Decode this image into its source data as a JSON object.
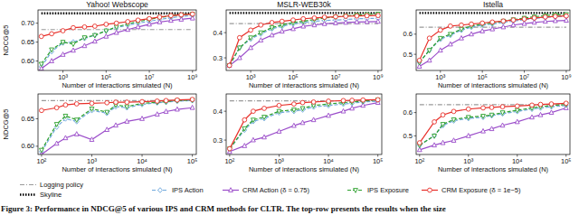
{
  "caption": "Figure 3: Performance in NDCG@5 of various IPS and CRM methods for CLTR. The top-row presents the results when the size",
  "chart_data": [
    {
      "type": "line",
      "title": "Yahoo! Webscope",
      "x_label": "Number of interactions simulated (N)",
      "y_label": "NDCG@5",
      "log": "x",
      "legend": "bottom",
      "x": [
        100,
        300,
        1000,
        3000,
        10000,
        30000,
        100000,
        300000,
        1000000,
        3000000,
        10000000,
        30000000,
        100000000,
        300000000,
        1000000000
      ],
      "xlim": [
        70,
        1500000000
      ],
      "xticks": [
        {
          "value": 1000,
          "label": "10³"
        },
        {
          "value": 100000,
          "label": "10⁵"
        },
        {
          "value": 10000000,
          "label": "10⁷"
        },
        {
          "value": 1000000000,
          "label": "10⁹"
        }
      ],
      "ylim": [
        0.575,
        0.735
      ],
      "yticks": [
        {
          "value": 0.6,
          "label": "0.60"
        },
        {
          "value": 0.65,
          "label": "0.65"
        },
        {
          "value": 0.7,
          "label": "0.70"
        }
      ],
      "series": [
        {
          "name": "Logging policy",
          "color": "#999999",
          "line_style": "dashdot",
          "values": [
            0.683,
            0.683,
            0.683,
            0.683,
            0.683,
            0.683,
            0.683,
            0.683,
            0.683,
            0.683,
            0.683,
            0.683,
            0.683,
            0.683,
            0.683
          ]
        },
        {
          "name": "Skyline",
          "color": "#000000",
          "line_style": "dotted",
          "values": [
            0.726,
            0.726,
            0.726,
            0.726,
            0.726,
            0.726,
            0.726,
            0.726,
            0.726,
            0.726,
            0.726,
            0.726,
            0.726,
            0.726,
            0.726
          ]
        },
        {
          "name": "IPS Action",
          "color": "#6fa8dc",
          "line_style": "dashed",
          "marker": "diamond",
          "values": [
            0.585,
            0.625,
            0.648,
            0.65,
            0.66,
            0.668,
            0.68,
            0.688,
            0.695,
            0.7,
            0.705,
            0.71,
            0.714,
            0.718,
            0.72
          ]
        },
        {
          "name": "CRM Action (δ = 0.75)",
          "color": "#9b4dca",
          "line_style": "solid",
          "marker": "triangle-up",
          "values": [
            0.58,
            0.6,
            0.617,
            0.628,
            0.64,
            0.652,
            0.665,
            0.675,
            0.683,
            0.69,
            0.697,
            0.703,
            0.707,
            0.71,
            0.713
          ]
        },
        {
          "name": "IPS Exposure",
          "color": "#2ca02c",
          "line_style": "dashed",
          "marker": "triangle-down",
          "values": [
            0.592,
            0.63,
            0.65,
            0.645,
            0.662,
            0.668,
            0.68,
            0.69,
            0.698,
            0.704,
            0.71,
            0.715,
            0.719,
            0.722,
            0.724
          ]
        },
        {
          "name": "CRM Exposure (δ = 1e−5)",
          "color": "#e8302a",
          "line_style": "solid",
          "marker": "circle",
          "values": [
            0.665,
            0.672,
            0.68,
            0.688,
            0.69,
            0.692,
            0.697,
            0.7,
            0.704,
            0.708,
            0.712,
            0.716,
            0.72,
            0.722,
            0.724
          ]
        }
      ]
    },
    {
      "type": "line",
      "title": "MSLR-WEB30k",
      "x_label": "Number of interactions simulated (N)",
      "log": "x",
      "x": [
        100,
        300,
        1000,
        3000,
        10000,
        30000,
        100000,
        300000,
        1000000,
        3000000,
        10000000,
        30000000,
        100000000,
        300000000,
        1000000000
      ],
      "xlim": [
        70,
        1500000000
      ],
      "xticks": [
        {
          "value": 1000,
          "label": "10³"
        },
        {
          "value": 100000,
          "label": "10⁵"
        },
        {
          "value": 10000000,
          "label": "10⁷"
        },
        {
          "value": 1000000000,
          "label": "10⁹"
        }
      ],
      "ylim": [
        0.25,
        0.49
      ],
      "yticks": [
        0.3,
        0.4
      ],
      "series": [
        {
          "color": "#999999",
          "line_style": "dashdot",
          "values": [
            0.436,
            0.436,
            0.436,
            0.436,
            0.436,
            0.436,
            0.436,
            0.436,
            0.436,
            0.436,
            0.436,
            0.436,
            0.436,
            0.436,
            0.436
          ]
        },
        {
          "color": "#000000",
          "line_style": "dotted",
          "values": [
            0.478,
            0.478,
            0.478,
            0.478,
            0.478,
            0.478,
            0.478,
            0.478,
            0.478,
            0.478,
            0.478,
            0.478,
            0.478,
            0.478,
            0.478
          ]
        },
        {
          "color": "#6fa8dc",
          "line_style": "dashed",
          "marker": "diamond",
          "values": [
            0.27,
            0.34,
            0.375,
            0.395,
            0.415,
            0.425,
            0.435,
            0.44,
            0.445,
            0.448,
            0.45,
            0.452,
            0.455,
            0.456,
            0.457
          ]
        },
        {
          "color": "#9b4dca",
          "line_style": "solid",
          "marker": "triangle-up",
          "values": [
            0.27,
            0.3,
            0.34,
            0.37,
            0.39,
            0.405,
            0.415,
            0.425,
            0.43,
            0.435,
            0.438,
            0.44,
            0.442,
            0.443,
            0.444
          ]
        },
        {
          "color": "#2ca02c",
          "line_style": "dashed",
          "marker": "triangle-down",
          "values": [
            0.27,
            0.34,
            0.38,
            0.4,
            0.42,
            0.43,
            0.44,
            0.445,
            0.452,
            0.458,
            0.462,
            0.466,
            0.47,
            0.472,
            0.474
          ]
        },
        {
          "color": "#e8302a",
          "line_style": "solid",
          "marker": "circle",
          "values": [
            0.27,
            0.38,
            0.41,
            0.43,
            0.44,
            0.445,
            0.45,
            0.455,
            0.458,
            0.461,
            0.463,
            0.465,
            0.466,
            0.467,
            0.468
          ]
        }
      ]
    },
    {
      "type": "line",
      "title": "Istella",
      "x_label": "Number of interactions simulated (N)",
      "log": "x",
      "x": [
        100,
        300,
        1000,
        3000,
        10000,
        30000,
        100000,
        300000,
        1000000,
        3000000,
        10000000,
        30000000,
        100000000,
        300000000,
        1000000000
      ],
      "xlim": [
        70,
        1500000000
      ],
      "xticks": [
        {
          "value": 1000,
          "label": "10³"
        },
        {
          "value": 100000,
          "label": "10⁵"
        },
        {
          "value": 10000000,
          "label": "10⁷"
        },
        {
          "value": 1000000000,
          "label": "10⁹"
        }
      ],
      "ylim": [
        0.42,
        0.72
      ],
      "yticks": [
        0.5,
        0.6
      ],
      "series": [
        {
          "color": "#999999",
          "line_style": "dashdot",
          "values": [
            0.634,
            0.634,
            0.634,
            0.634,
            0.634,
            0.634,
            0.634,
            0.634,
            0.634,
            0.634,
            0.634,
            0.634,
            0.634,
            0.634,
            0.634
          ]
        },
        {
          "color": "#000000",
          "line_style": "dotted",
          "values": [
            0.705,
            0.705,
            0.705,
            0.705,
            0.705,
            0.705,
            0.705,
            0.705,
            0.705,
            0.705,
            0.705,
            0.705,
            0.705,
            0.705,
            0.705
          ]
        },
        {
          "color": "#6fa8dc",
          "line_style": "dashed",
          "marker": "diamond",
          "values": [
            0.46,
            0.52,
            0.575,
            0.595,
            0.62,
            0.635,
            0.645,
            0.65,
            0.658,
            0.665,
            0.672,
            0.678,
            0.683,
            0.686,
            0.688
          ]
        },
        {
          "color": "#9b4dca",
          "line_style": "solid",
          "marker": "triangle-up",
          "values": [
            0.44,
            0.47,
            0.52,
            0.55,
            0.58,
            0.6,
            0.615,
            0.625,
            0.635,
            0.645,
            0.652,
            0.658,
            0.663,
            0.666,
            0.668
          ]
        },
        {
          "color": "#2ca02c",
          "line_style": "dashed",
          "marker": "triangle-down",
          "values": [
            0.46,
            0.52,
            0.58,
            0.6,
            0.625,
            0.64,
            0.65,
            0.655,
            0.665,
            0.672,
            0.68,
            0.686,
            0.692,
            0.696,
            0.698
          ]
        },
        {
          "color": "#e8302a",
          "line_style": "solid",
          "marker": "circle",
          "values": [
            0.47,
            0.58,
            0.62,
            0.64,
            0.645,
            0.65,
            0.655,
            0.66,
            0.665,
            0.67,
            0.675,
            0.68,
            0.685,
            0.688,
            0.69
          ]
        }
      ]
    },
    {
      "type": "line",
      "x_label": "Number of interactions simulated (N)",
      "y_label": "NDCG@5",
      "log": "x",
      "x": [
        100,
        200,
        300,
        500,
        1000,
        2000,
        3000,
        5000,
        10000,
        20000,
        30000,
        50000,
        100000
      ],
      "xlim": [
        85,
        120000
      ],
      "xticks": [
        {
          "value": 100,
          "label": "10²"
        },
        {
          "value": 1000,
          "label": "10³"
        },
        {
          "value": 10000,
          "label": "10⁴"
        },
        {
          "value": 100000,
          "label": "10⁵"
        }
      ],
      "ylim": [
        0.585,
        0.695
      ],
      "yticks": [
        {
          "value": 0.6,
          "label": "0.60"
        },
        {
          "value": 0.65,
          "label": "0.65"
        }
      ],
      "series": [
        {
          "color": "#999999",
          "line_style": "dashdot",
          "values": [
            0.683,
            0.683,
            0.683,
            0.683,
            0.683,
            0.683,
            0.683,
            0.683,
            0.683,
            0.683,
            0.683,
            0.683,
            0.683
          ]
        },
        {
          "color": "#6fa8dc",
          "line_style": "dashed",
          "marker": "diamond",
          "values": [
            0.59,
            0.635,
            0.65,
            0.645,
            0.665,
            0.66,
            0.672,
            0.67,
            0.676,
            0.679,
            0.68,
            0.682,
            0.683
          ]
        },
        {
          "color": "#9b4dca",
          "line_style": "solid",
          "marker": "triangle-up",
          "values": [
            0.585,
            0.605,
            0.615,
            0.622,
            0.612,
            0.63,
            0.638,
            0.645,
            0.65,
            0.658,
            0.663,
            0.667,
            0.67
          ]
        },
        {
          "color": "#2ca02c",
          "line_style": "dashed",
          "marker": "triangle-down",
          "values": [
            0.593,
            0.64,
            0.655,
            0.648,
            0.668,
            0.662,
            0.675,
            0.672,
            0.678,
            0.68,
            0.681,
            0.683,
            0.684
          ]
        },
        {
          "color": "#e8302a",
          "line_style": "solid",
          "marker": "circle",
          "values": [
            0.665,
            0.67,
            0.675,
            0.677,
            0.678,
            0.679,
            0.68,
            0.68,
            0.681,
            0.682,
            0.683,
            0.684,
            0.685
          ]
        }
      ]
    },
    {
      "type": "line",
      "x_label": "Number of interactions simulated (N)",
      "log": "x",
      "x": [
        100,
        200,
        300,
        500,
        1000,
        2000,
        3000,
        5000,
        10000,
        20000,
        30000,
        50000,
        100000
      ],
      "xlim": [
        85,
        120000
      ],
      "xticks": [
        {
          "value": 100,
          "label": "10²"
        },
        {
          "value": 1000,
          "label": "10³"
        },
        {
          "value": 10000,
          "label": "10⁴"
        },
        {
          "value": 100000,
          "label": "10⁵"
        }
      ],
      "ylim": [
        0.25,
        0.46
      ],
      "yticks": [
        0.3,
        0.4
      ],
      "series": [
        {
          "color": "#999999",
          "line_style": "dashdot",
          "values": [
            0.436,
            0.436,
            0.436,
            0.436,
            0.436,
            0.436,
            0.436,
            0.436,
            0.436,
            0.436,
            0.436,
            0.436,
            0.436
          ]
        },
        {
          "color": "#6fa8dc",
          "line_style": "dashed",
          "marker": "diamond",
          "values": [
            0.27,
            0.335,
            0.365,
            0.375,
            0.395,
            0.4,
            0.405,
            0.415,
            0.42,
            0.425,
            0.428,
            0.432,
            0.435
          ]
        },
        {
          "color": "#9b4dca",
          "line_style": "solid",
          "marker": "triangle-up",
          "values": [
            0.26,
            0.28,
            0.3,
            0.31,
            0.33,
            0.35,
            0.36,
            0.37,
            0.385,
            0.4,
            0.41,
            0.42,
            0.43
          ]
        },
        {
          "color": "#2ca02c",
          "line_style": "dashed",
          "marker": "triangle-down",
          "values": [
            0.27,
            0.34,
            0.37,
            0.38,
            0.4,
            0.405,
            0.41,
            0.42,
            0.425,
            0.43,
            0.432,
            0.435,
            0.44
          ]
        },
        {
          "color": "#e8302a",
          "line_style": "solid",
          "marker": "circle",
          "values": [
            0.27,
            0.37,
            0.4,
            0.41,
            0.42,
            0.425,
            0.43,
            0.432,
            0.435,
            0.437,
            0.438,
            0.439,
            0.44
          ]
        }
      ]
    },
    {
      "type": "line",
      "x_label": "Number of interactions simulated (N)",
      "log": "x",
      "x": [
        100,
        200,
        300,
        500,
        1000,
        2000,
        3000,
        5000,
        10000,
        20000,
        30000,
        50000,
        100000
      ],
      "xlim": [
        85,
        120000
      ],
      "xticks": [
        {
          "value": 100,
          "label": "10²"
        },
        {
          "value": 1000,
          "label": "10³"
        },
        {
          "value": 10000,
          "label": "10⁴"
        },
        {
          "value": 100000,
          "label": "10⁵"
        }
      ],
      "ylim": [
        0.42,
        0.68
      ],
      "yticks": [
        0.5,
        0.6
      ],
      "series": [
        {
          "color": "#999999",
          "line_style": "dashdot",
          "values": [
            0.634,
            0.634,
            0.634,
            0.634,
            0.634,
            0.634,
            0.634,
            0.634,
            0.634,
            0.634,
            0.634,
            0.634,
            0.634
          ]
        },
        {
          "color": "#6fa8dc",
          "line_style": "dashed",
          "marker": "diamond",
          "values": [
            0.46,
            0.5,
            0.545,
            0.565,
            0.575,
            0.58,
            0.587,
            0.595,
            0.605,
            0.615,
            0.62,
            0.625,
            0.63
          ]
        },
        {
          "color": "#9b4dca",
          "line_style": "solid",
          "marker": "triangle-up",
          "values": [
            0.44,
            0.46,
            0.47,
            0.48,
            0.5,
            0.52,
            0.53,
            0.545,
            0.56,
            0.58,
            0.59,
            0.6,
            0.62
          ]
        },
        {
          "color": "#2ca02c",
          "line_style": "dashed",
          "marker": "triangle-down",
          "values": [
            0.46,
            0.5,
            0.55,
            0.57,
            0.58,
            0.585,
            0.59,
            0.6,
            0.61,
            0.62,
            0.625,
            0.63,
            0.635
          ]
        },
        {
          "color": "#e8302a",
          "line_style": "solid",
          "marker": "circle",
          "values": [
            0.47,
            0.56,
            0.59,
            0.605,
            0.615,
            0.62,
            0.622,
            0.625,
            0.628,
            0.632,
            0.635,
            0.637,
            0.64
          ]
        }
      ]
    }
  ]
}
